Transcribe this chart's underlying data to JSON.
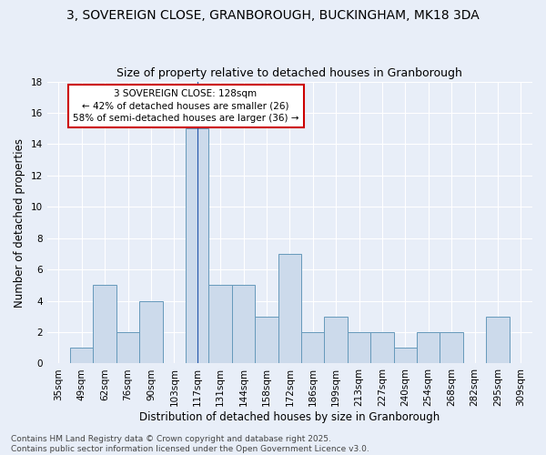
{
  "title": "3, SOVEREIGN CLOSE, GRANBOROUGH, BUCKINGHAM, MK18 3DA",
  "subtitle": "Size of property relative to detached houses in Granborough",
  "xlabel": "Distribution of detached houses by size in Granborough",
  "ylabel": "Number of detached properties",
  "categories": [
    "35sqm",
    "49sqm",
    "62sqm",
    "76sqm",
    "90sqm",
    "103sqm",
    "117sqm",
    "131sqm",
    "144sqm",
    "158sqm",
    "172sqm",
    "186sqm",
    "199sqm",
    "213sqm",
    "227sqm",
    "240sqm",
    "254sqm",
    "268sqm",
    "282sqm",
    "295sqm",
    "309sqm"
  ],
  "values": [
    0,
    1,
    5,
    2,
    4,
    0,
    15,
    5,
    5,
    3,
    7,
    2,
    3,
    2,
    2,
    1,
    2,
    2,
    0,
    3,
    0
  ],
  "bar_color": "#ccdaeb",
  "bar_edge_color": "#6699bb",
  "highlight_index": 6,
  "highlight_line_color": "#2255aa",
  "ylim": [
    0,
    18
  ],
  "yticks": [
    0,
    2,
    4,
    6,
    8,
    10,
    12,
    14,
    16,
    18
  ],
  "annotation_text": "3 SOVEREIGN CLOSE: 128sqm\n← 42% of detached houses are smaller (26)\n58% of semi-detached houses are larger (36) →",
  "annotation_box_color": "#ffffff",
  "annotation_box_edge": "#cc0000",
  "footer_line1": "Contains HM Land Registry data © Crown copyright and database right 2025.",
  "footer_line2": "Contains public sector information licensed under the Open Government Licence v3.0.",
  "background_color": "#e8eef8",
  "grid_color": "#ffffff",
  "title_fontsize": 10,
  "subtitle_fontsize": 9,
  "axis_label_fontsize": 8.5,
  "tick_fontsize": 7.5,
  "annotation_fontsize": 7.5,
  "footer_fontsize": 6.5
}
